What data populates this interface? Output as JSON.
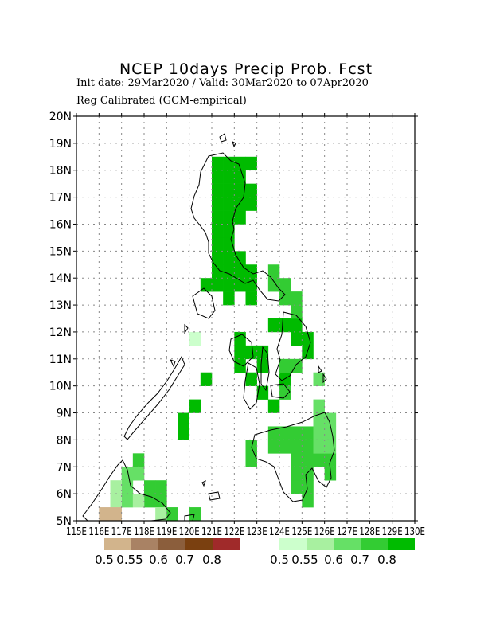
{
  "header": {
    "title": "NCEP 10days Precip Prob. Fcst",
    "subtitle_dates": "Init date: 29Mar2020 / Valid: 30Mar2020 to 07Apr2020",
    "subtitle_method": "Reg Calibrated (GCM-empirical)"
  },
  "axes": {
    "y_labels": [
      "5N",
      "6N",
      "7N",
      "8N",
      "9N",
      "10N",
      "11N",
      "12N",
      "13N",
      "14N",
      "15N",
      "16N",
      "17N",
      "18N",
      "19N",
      "20N"
    ],
    "x_labels": [
      "115E",
      "116E",
      "117E",
      "118E",
      "119E",
      "120E",
      "121E",
      "122E",
      "123E",
      "124E",
      "125E",
      "126E",
      "127E",
      "128E",
      "129E",
      "130E"
    ]
  },
  "legend": {
    "dry": {
      "colors": [
        "#d2b48c",
        "#a98264",
        "#8b5e3c",
        "#7a4010",
        "#a02a2a"
      ],
      "labels": [
        "0.5",
        "0.55",
        "0.6",
        "0.7",
        "0.8"
      ]
    },
    "wet": {
      "colors": [
        "#ccffcc",
        "#a8f0a0",
        "#66e066",
        "#33cc33",
        "#00bb00"
      ],
      "labels": [
        "0.5",
        "0.55",
        "0.6",
        "0.7",
        "0.8"
      ]
    }
  },
  "map_data": {
    "lon_range": [
      115,
      130
    ],
    "lat_range": [
      5,
      20
    ],
    "cell_deg": 0.5,
    "grid_lines_every_deg": 1,
    "cells": [
      [
        121.0,
        18.0,
        5
      ],
      [
        121.5,
        18.0,
        5
      ],
      [
        122.0,
        18.0,
        5
      ],
      [
        122.5,
        18.0,
        5
      ],
      [
        121.0,
        17.5,
        5
      ],
      [
        121.5,
        17.5,
        5
      ],
      [
        122.0,
        17.5,
        5
      ],
      [
        121.0,
        17.0,
        5
      ],
      [
        121.5,
        17.0,
        5
      ],
      [
        122.0,
        17.0,
        5
      ],
      [
        122.5,
        17.0,
        5
      ],
      [
        121.0,
        16.5,
        5
      ],
      [
        121.5,
        16.5,
        5
      ],
      [
        122.0,
        16.5,
        5
      ],
      [
        122.5,
        16.5,
        5
      ],
      [
        121.0,
        16.0,
        5
      ],
      [
        121.5,
        16.0,
        5
      ],
      [
        122.0,
        16.0,
        5
      ],
      [
        121.0,
        15.5,
        5
      ],
      [
        121.5,
        15.5,
        5
      ],
      [
        121.0,
        15.0,
        5
      ],
      [
        121.5,
        15.0,
        5
      ],
      [
        121.0,
        14.5,
        5
      ],
      [
        121.5,
        14.5,
        5
      ],
      [
        122.0,
        14.5,
        5
      ],
      [
        122.5,
        14.0,
        5
      ],
      [
        122.0,
        14.0,
        5
      ],
      [
        121.5,
        14.0,
        5
      ],
      [
        121.0,
        14.0,
        5
      ],
      [
        121.5,
        13.5,
        5
      ],
      [
        122.0,
        13.5,
        5
      ],
      [
        121.5,
        13.0,
        5
      ],
      [
        122.5,
        13.5,
        5
      ],
      [
        122.5,
        13.0,
        5
      ],
      [
        120.5,
        13.5,
        5
      ],
      [
        121.0,
        13.5,
        5
      ],
      [
        122.0,
        11.5,
        5
      ],
      [
        122.0,
        11.0,
        5
      ],
      [
        122.5,
        11.0,
        5
      ],
      [
        122.0,
        10.5,
        5
      ],
      [
        123.0,
        11.0,
        5
      ],
      [
        123.0,
        10.5,
        5
      ],
      [
        122.5,
        10.0,
        5
      ],
      [
        120.5,
        10.0,
        5
      ],
      [
        120.0,
        9.0,
        5
      ],
      [
        119.5,
        8.5,
        5
      ],
      [
        119.5,
        8.0,
        5
      ],
      [
        123.0,
        9.5,
        5
      ],
      [
        123.5,
        9.0,
        5
      ],
      [
        124.0,
        10.0,
        5
      ],
      [
        123.5,
        12.0,
        5
      ],
      [
        124.0,
        12.0,
        5
      ],
      [
        124.5,
        12.0,
        5
      ],
      [
        124.5,
        11.5,
        5
      ],
      [
        125.0,
        11.5,
        5
      ],
      [
        125.0,
        11.0,
        5
      ],
      [
        123.5,
        14.0,
        4
      ],
      [
        123.5,
        13.5,
        4
      ],
      [
        124.0,
        13.5,
        4
      ],
      [
        124.0,
        13.0,
        4
      ],
      [
        124.5,
        13.0,
        4
      ],
      [
        124.5,
        12.5,
        4
      ],
      [
        123.5,
        8.0,
        4
      ],
      [
        124.0,
        8.0,
        4
      ],
      [
        124.5,
        8.0,
        4
      ],
      [
        125.0,
        8.0,
        4
      ],
      [
        123.5,
        7.5,
        4
      ],
      [
        124.0,
        7.5,
        4
      ],
      [
        124.5,
        7.5,
        4
      ],
      [
        125.0,
        7.5,
        4
      ],
      [
        124.5,
        7.0,
        4
      ],
      [
        125.0,
        7.0,
        4
      ],
      [
        124.5,
        6.5,
        4
      ],
      [
        125.0,
        6.5,
        4
      ],
      [
        124.5,
        6.0,
        4
      ],
      [
        125.0,
        6.0,
        4
      ],
      [
        125.0,
        5.5,
        4
      ],
      [
        122.5,
        7.5,
        4
      ],
      [
        122.5,
        7.0,
        4
      ],
      [
        125.5,
        7.0,
        4
      ],
      [
        126.0,
        7.0,
        4
      ],
      [
        126.0,
        6.5,
        4
      ],
      [
        124.0,
        10.5,
        4
      ],
      [
        124.5,
        10.5,
        4
      ],
      [
        125.5,
        8.5,
        3
      ],
      [
        126.0,
        8.5,
        3
      ],
      [
        125.5,
        8.0,
        3
      ],
      [
        126.0,
        8.0,
        3
      ],
      [
        125.5,
        7.5,
        3
      ],
      [
        126.0,
        7.5,
        3
      ],
      [
        125.5,
        9.0,
        3
      ],
      [
        124.0,
        9.5,
        4
      ],
      [
        125.5,
        10.0,
        3
      ],
      [
        118.0,
        6.0,
        4
      ],
      [
        118.5,
        6.0,
        4
      ],
      [
        118.0,
        5.5,
        4
      ],
      [
        118.5,
        5.5,
        4
      ],
      [
        117.5,
        7.0,
        4
      ],
      [
        117.0,
        6.5,
        3
      ],
      [
        117.5,
        6.5,
        3
      ],
      [
        117.0,
        6.0,
        3
      ],
      [
        117.0,
        5.5,
        3
      ],
      [
        116.5,
        6.0,
        2
      ],
      [
        116.5,
        5.5,
        2
      ],
      [
        117.5,
        5.5,
        2
      ],
      [
        118.5,
        5.0,
        2
      ],
      [
        116.0,
        5.0,
        1
      ],
      [
        116.5,
        5.0,
        1
      ],
      [
        119.0,
        5.0,
        4
      ],
      [
        120.0,
        5.0,
        4
      ],
      [
        120.0,
        11.5,
        1
      ]
    ]
  }
}
